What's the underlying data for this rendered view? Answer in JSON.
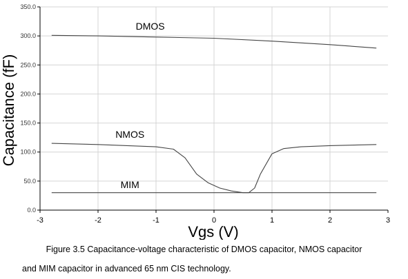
{
  "chart_data": {
    "type": "line",
    "xlabel": "Vgs (V)",
    "ylabel": "Capacitance (fF)",
    "xlim": [
      -3,
      3
    ],
    "ylim": [
      0,
      350
    ],
    "x_ticks": [
      "-3",
      "-2",
      "-1",
      "0",
      "1",
      "2",
      "3"
    ],
    "y_ticks": [
      "0.0",
      "50.0",
      "100.0",
      "150.0",
      "200.0",
      "250.0",
      "300.0",
      "350.0"
    ],
    "grid": true,
    "series": [
      {
        "name": "DMOS",
        "x": [
          -2.8,
          -2.0,
          -1.0,
          0.0,
          1.0,
          2.0,
          2.8
        ],
        "y": [
          301,
          300,
          298,
          296,
          291,
          285,
          279
        ]
      },
      {
        "name": "NMOS",
        "x": [
          -2.8,
          -2.0,
          -1.5,
          -1.0,
          -0.7,
          -0.5,
          -0.3,
          -0.1,
          0.1,
          0.3,
          0.5,
          0.6,
          0.7,
          0.8,
          1.0,
          1.2,
          1.5,
          2.0,
          2.8
        ],
        "y": [
          115,
          113,
          111,
          109,
          105,
          90,
          62,
          47,
          38,
          33,
          30,
          30,
          38,
          62,
          97,
          106,
          109,
          111,
          113
        ]
      },
      {
        "name": "MIM",
        "x": [
          -2.8,
          2.8
        ],
        "y": [
          30,
          30
        ]
      }
    ]
  },
  "caption": {
    "line1": "Figure 3.5 Capacitance-voltage characteristic of DMOS capacitor, NMOS capacitor",
    "line2": "and MIM capacitor in advanced 65 nm CIS technology."
  }
}
